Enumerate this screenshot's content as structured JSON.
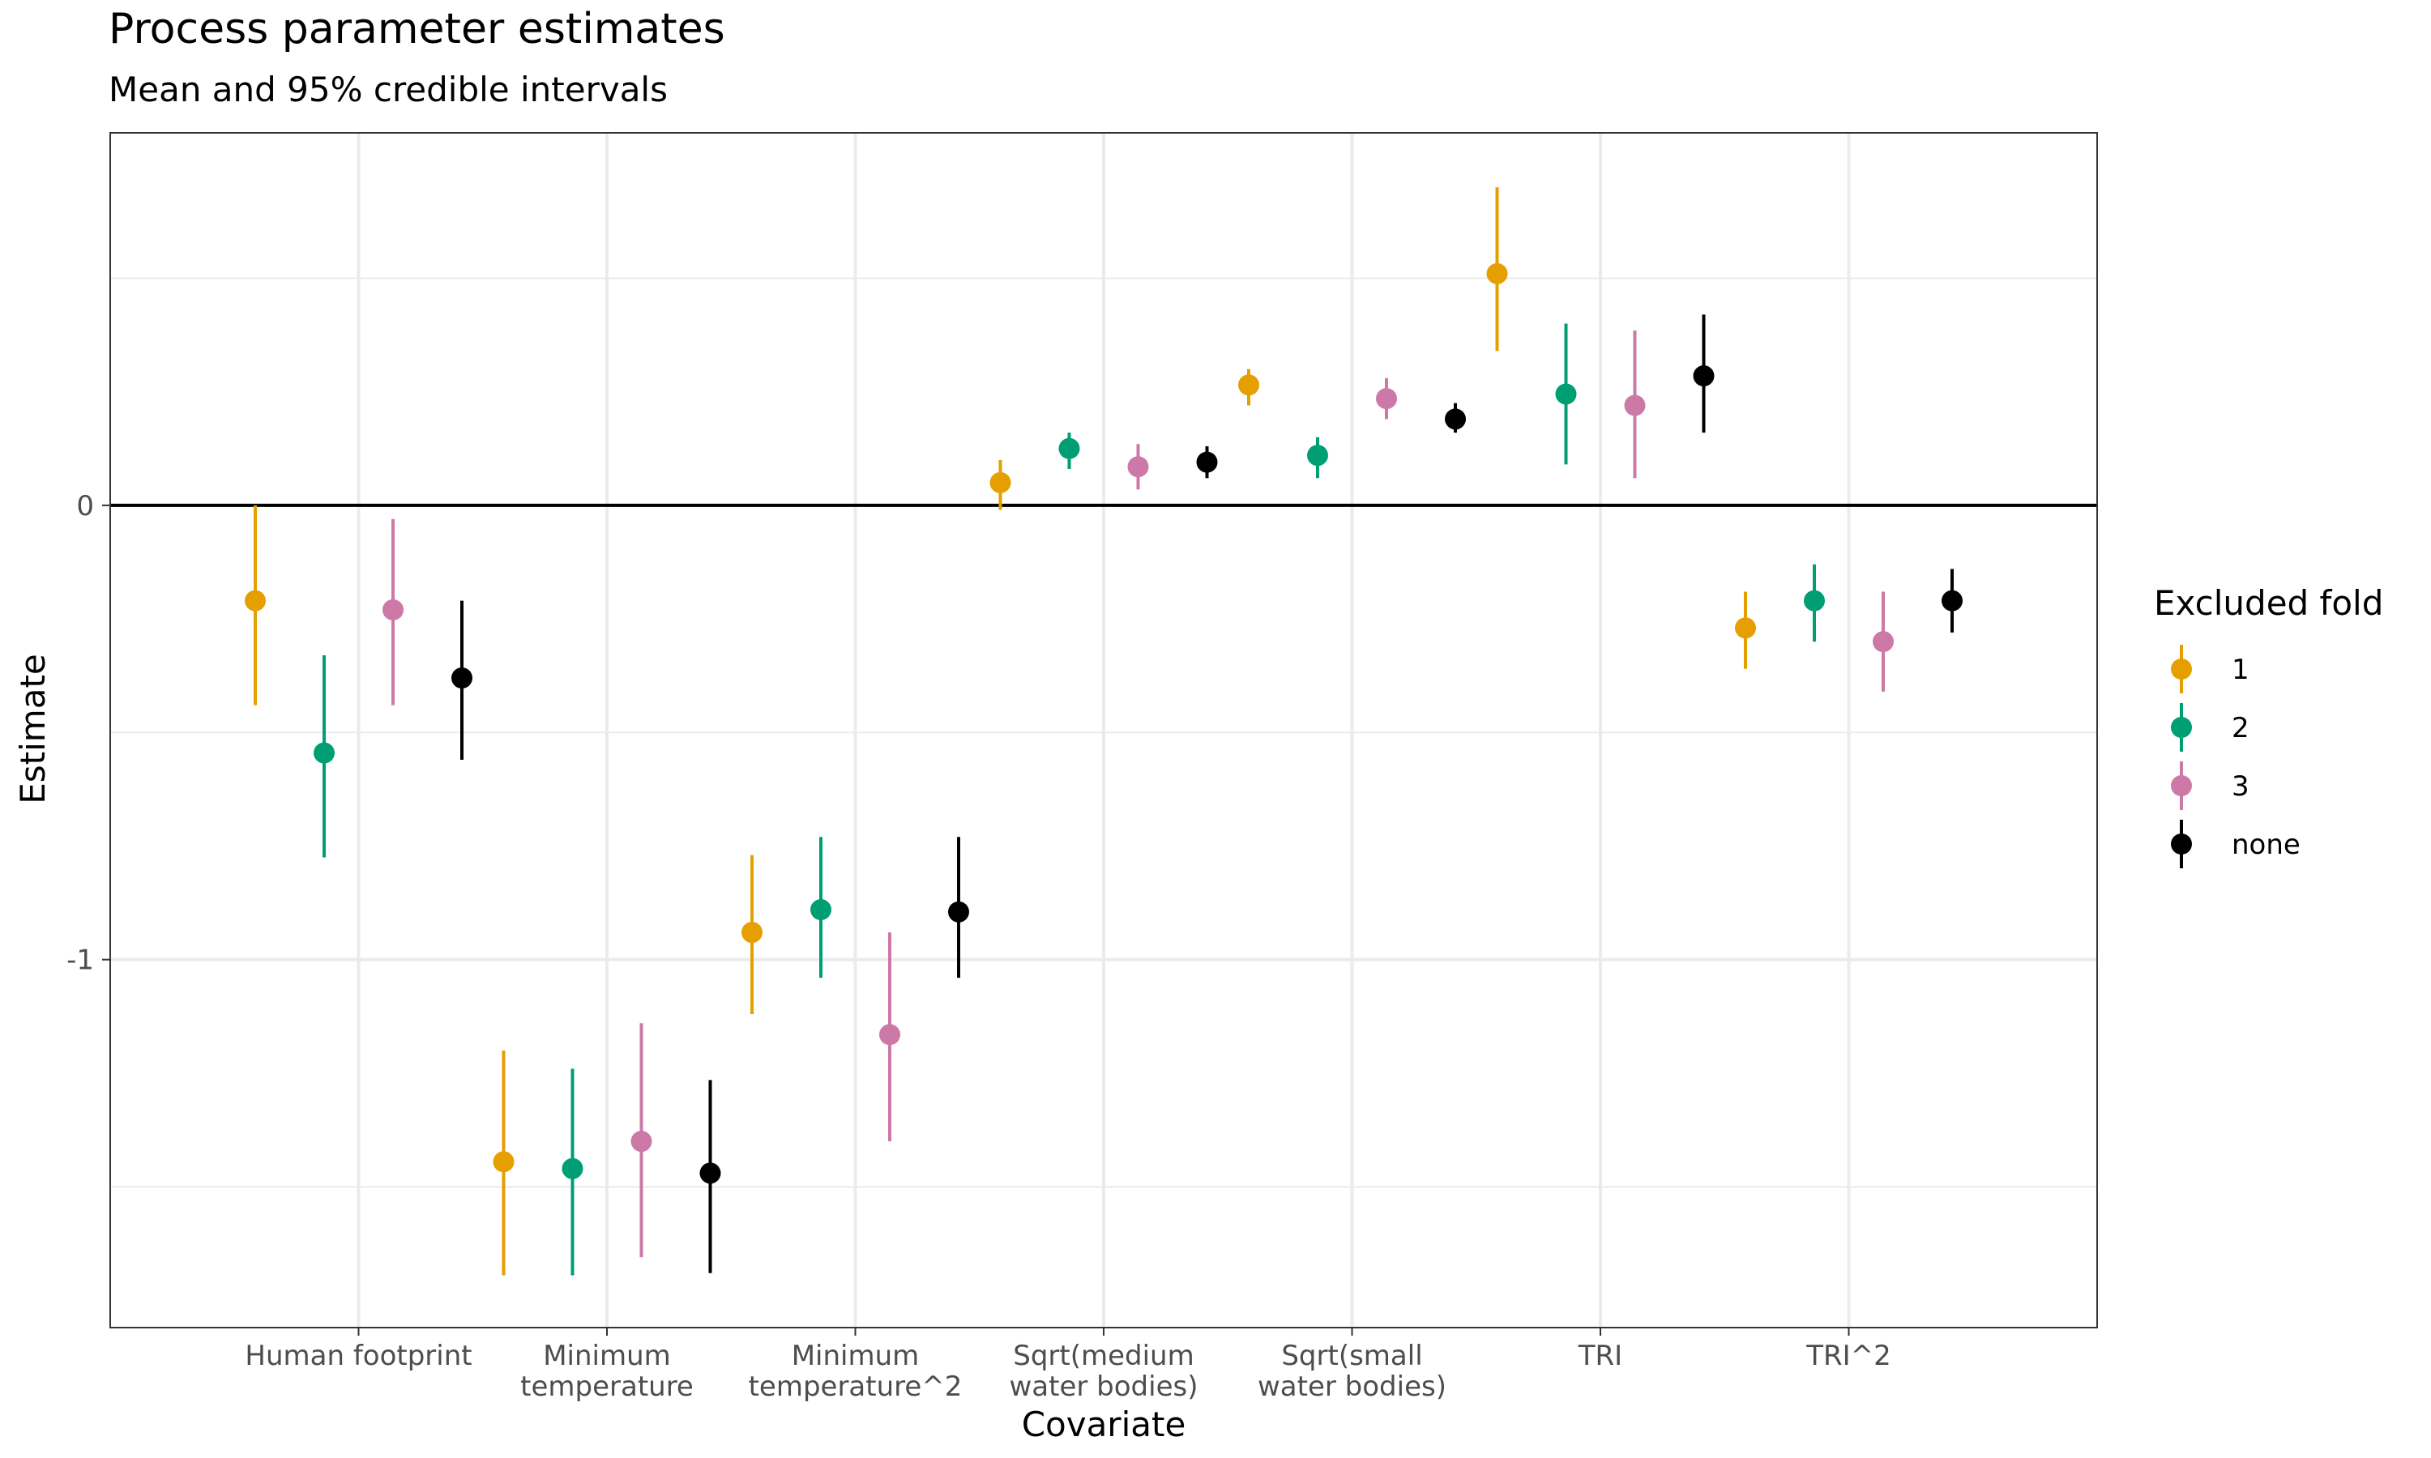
{
  "chart_data": {
    "type": "scatter",
    "title": "Process parameter estimates",
    "subtitle": "Mean and 95% credible intervals",
    "xlabel": "Covariate",
    "ylabel": "Estimate",
    "categories": [
      [
        "Human footprint"
      ],
      [
        "Minimum",
        "temperature"
      ],
      [
        "Minimum",
        "temperature^2"
      ],
      [
        "Sqrt(medium",
        "water bodies)"
      ],
      [
        "Sqrt(small",
        "water bodies)"
      ],
      [
        "TRI"
      ],
      [
        "TRI^2"
      ]
    ],
    "y_ticks": [
      {
        "value": 0,
        "label": "0"
      },
      {
        "value": -1,
        "label": "-1"
      }
    ],
    "ylim": [
      -1.81,
      0.82
    ],
    "grid": true,
    "reference_line": 0,
    "legend": {
      "title": "Excluded fold",
      "placement": "right"
    },
    "series": [
      {
        "name": "1",
        "color": "#E69F00",
        "mean": [
          -0.21,
          -1.445,
          -0.94,
          0.05,
          0.265,
          0.51,
          -0.27
        ],
        "lower": [
          -0.44,
          -1.695,
          -1.12,
          -0.01,
          0.22,
          0.34,
          -0.36
        ],
        "upper": [
          0.0,
          -1.2,
          -0.77,
          0.1,
          0.3,
          0.7,
          -0.19
        ]
      },
      {
        "name": "2",
        "color": "#009E73",
        "mean": [
          -0.545,
          -1.46,
          -0.89,
          0.125,
          0.11,
          0.245,
          -0.21
        ],
        "lower": [
          -0.775,
          -1.695,
          -1.04,
          0.08,
          0.06,
          0.09,
          -0.3
        ],
        "upper": [
          -0.33,
          -1.24,
          -0.73,
          0.16,
          0.15,
          0.4,
          -0.13
        ]
      },
      {
        "name": "3",
        "color": "#CC79A7",
        "mean": [
          -0.23,
          -1.4,
          -1.165,
          0.085,
          0.235,
          0.22,
          -0.3
        ],
        "lower": [
          -0.44,
          -1.655,
          -1.4,
          0.035,
          0.19,
          0.06,
          -0.41
        ],
        "upper": [
          -0.03,
          -1.14,
          -0.94,
          0.135,
          0.28,
          0.385,
          -0.19
        ]
      },
      {
        "name": "none",
        "color": "#000000",
        "mean": [
          -0.38,
          -1.47,
          -0.895,
          0.095,
          0.19,
          0.285,
          -0.21
        ],
        "lower": [
          -0.56,
          -1.69,
          -1.04,
          0.06,
          0.16,
          0.16,
          -0.28
        ],
        "upper": [
          -0.21,
          -1.265,
          -0.73,
          0.13,
          0.225,
          0.42,
          -0.14
        ]
      }
    ]
  }
}
